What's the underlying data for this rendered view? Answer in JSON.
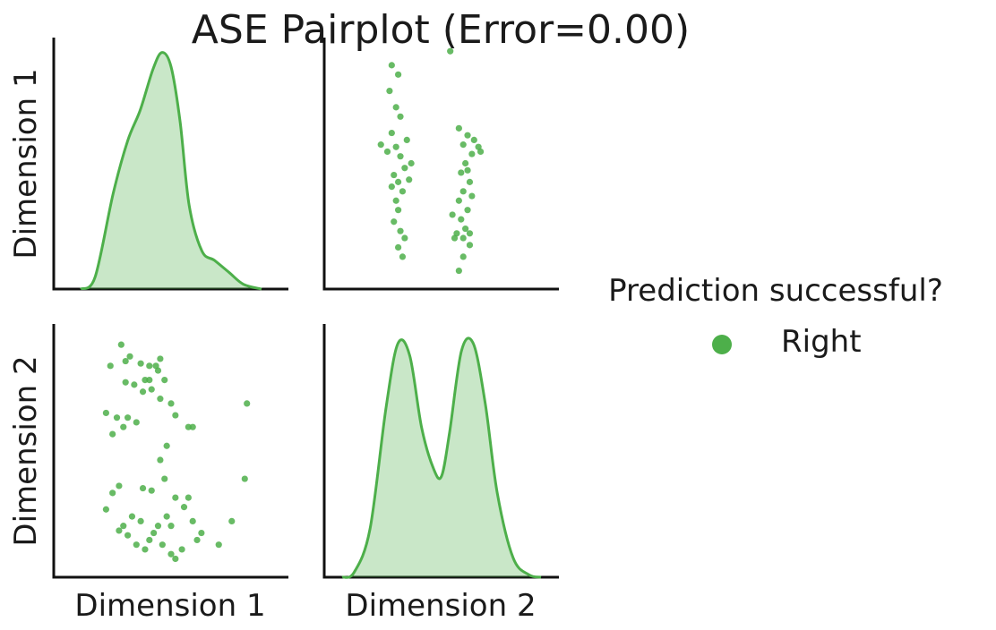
{
  "chart_data": {
    "type": "pairplot",
    "title": "ASE Pairplot (Error=0.00)",
    "variables": [
      "Dimension 1",
      "Dimension 2"
    ],
    "legend": {
      "title": "Prediction successful?",
      "placement": "right",
      "entries": [
        {
          "label": "Right",
          "color": "#4daf4a"
        }
      ]
    },
    "color": "#4daf4a",
    "diag_dim1_density": {
      "x": [
        0.0,
        0.08,
        0.18,
        0.26,
        0.33,
        0.4,
        0.45,
        0.5,
        0.55,
        0.6,
        0.67,
        0.74,
        0.82,
        0.9,
        1.0
      ],
      "density": [
        0.0,
        0.05,
        0.4,
        0.62,
        0.75,
        0.92,
        0.99,
        0.93,
        0.7,
        0.35,
        0.16,
        0.12,
        0.07,
        0.02,
        0.0
      ]
    },
    "diag_dim2_density": {
      "x": [
        0.0,
        0.06,
        0.14,
        0.22,
        0.28,
        0.34,
        0.4,
        0.46,
        0.5,
        0.54,
        0.6,
        0.66,
        0.72,
        0.78,
        0.86,
        0.94,
        1.0
      ],
      "density": [
        0.0,
        0.02,
        0.2,
        0.7,
        0.97,
        0.92,
        0.62,
        0.45,
        0.42,
        0.6,
        0.94,
        0.97,
        0.72,
        0.35,
        0.08,
        0.01,
        0.0
      ]
    },
    "scatter_dim2_vs_dim1": {
      "points": [
        [
          0.27,
          0.92
        ],
        [
          0.3,
          0.88
        ],
        [
          0.26,
          0.81
        ],
        [
          0.29,
          0.74
        ],
        [
          0.31,
          0.7
        ],
        [
          0.27,
          0.63
        ],
        [
          0.29,
          0.57
        ],
        [
          0.31,
          0.53
        ],
        [
          0.33,
          0.48
        ],
        [
          0.28,
          0.45
        ],
        [
          0.3,
          0.42
        ],
        [
          0.32,
          0.38
        ],
        [
          0.29,
          0.34
        ],
        [
          0.3,
          0.3
        ],
        [
          0.28,
          0.25
        ],
        [
          0.31,
          0.21
        ],
        [
          0.33,
          0.18
        ],
        [
          0.3,
          0.14
        ],
        [
          0.32,
          0.1
        ],
        [
          0.25,
          0.55
        ],
        [
          0.34,
          0.6
        ],
        [
          0.36,
          0.5
        ],
        [
          0.22,
          0.58
        ],
        [
          0.35,
          0.43
        ],
        [
          0.27,
          0.4
        ],
        [
          0.54,
          0.98
        ],
        [
          0.58,
          0.65
        ],
        [
          0.6,
          0.58
        ],
        [
          0.62,
          0.62
        ],
        [
          0.64,
          0.54
        ],
        [
          0.61,
          0.5
        ],
        [
          0.59,
          0.46
        ],
        [
          0.63,
          0.42
        ],
        [
          0.6,
          0.38
        ],
        [
          0.58,
          0.34
        ],
        [
          0.62,
          0.3
        ],
        [
          0.59,
          0.26
        ],
        [
          0.61,
          0.22
        ],
        [
          0.57,
          0.2
        ],
        [
          0.55,
          0.28
        ],
        [
          0.6,
          0.18
        ],
        [
          0.63,
          0.15
        ],
        [
          0.65,
          0.6
        ],
        [
          0.67,
          0.57
        ],
        [
          0.68,
          0.55
        ],
        [
          0.64,
          0.36
        ],
        [
          0.62,
          0.47
        ],
        [
          0.58,
          0.04
        ],
        [
          0.56,
          0.18
        ],
        [
          0.6,
          0.1
        ],
        [
          0.63,
          0.2
        ]
      ]
    },
    "scatter_dim1_vs_dim2": {
      "points": [
        [
          0.27,
          0.95
        ],
        [
          0.29,
          0.88
        ],
        [
          0.22,
          0.86
        ],
        [
          0.31,
          0.9
        ],
        [
          0.36,
          0.87
        ],
        [
          0.4,
          0.86
        ],
        [
          0.45,
          0.89
        ],
        [
          0.44,
          0.84
        ],
        [
          0.38,
          0.8
        ],
        [
          0.33,
          0.78
        ],
        [
          0.29,
          0.79
        ],
        [
          0.37,
          0.75
        ],
        [
          0.41,
          0.76
        ],
        [
          0.45,
          0.72
        ],
        [
          0.5,
          0.7
        ],
        [
          0.52,
          0.65
        ],
        [
          0.2,
          0.66
        ],
        [
          0.25,
          0.64
        ],
        [
          0.3,
          0.64
        ],
        [
          0.28,
          0.6
        ],
        [
          0.34,
          0.62
        ],
        [
          0.23,
          0.57
        ],
        [
          0.43,
          0.86
        ],
        [
          0.47,
          0.8
        ],
        [
          0.85,
          0.7
        ],
        [
          0.58,
          0.6
        ],
        [
          0.6,
          0.6
        ],
        [
          0.4,
          0.8
        ],
        [
          0.2,
          0.25
        ],
        [
          0.23,
          0.32
        ],
        [
          0.26,
          0.35
        ],
        [
          0.37,
          0.34
        ],
        [
          0.41,
          0.33
        ],
        [
          0.47,
          0.38
        ],
        [
          0.52,
          0.3
        ],
        [
          0.56,
          0.26
        ],
        [
          0.6,
          0.2
        ],
        [
          0.64,
          0.15
        ],
        [
          0.48,
          0.22
        ],
        [
          0.44,
          0.18
        ],
        [
          0.4,
          0.12
        ],
        [
          0.36,
          0.2
        ],
        [
          0.32,
          0.22
        ],
        [
          0.28,
          0.18
        ],
        [
          0.26,
          0.16
        ],
        [
          0.3,
          0.14
        ],
        [
          0.34,
          0.1
        ],
        [
          0.38,
          0.08
        ],
        [
          0.42,
          0.15
        ],
        [
          0.46,
          0.1
        ],
        [
          0.5,
          0.06
        ],
        [
          0.55,
          0.08
        ],
        [
          0.62,
          0.12
        ],
        [
          0.72,
          0.1
        ],
        [
          0.78,
          0.2
        ],
        [
          0.84,
          0.38
        ],
        [
          0.48,
          0.52
        ],
        [
          0.45,
          0.46
        ],
        [
          0.52,
          0.04
        ],
        [
          0.5,
          0.18
        ],
        [
          0.58,
          0.3
        ]
      ]
    }
  }
}
